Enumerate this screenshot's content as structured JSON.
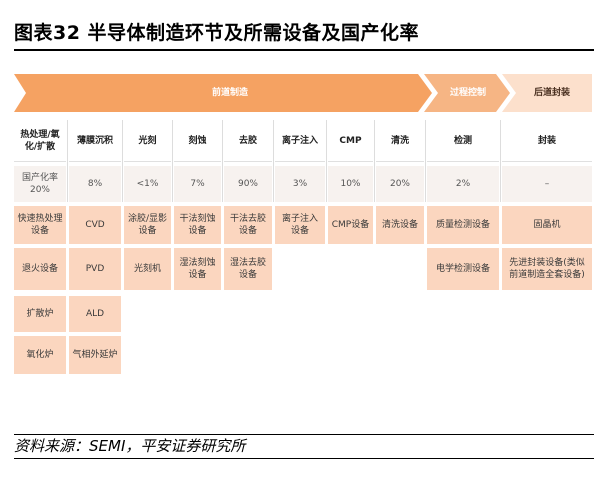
{
  "figure": {
    "title": "图表32    半导体制造环节及所需设备及国产化率",
    "source": "资料来源：SEMI，平安证券研究所"
  },
  "colors": {
    "stage_front": "#f5a262",
    "stage_mid": "#f6b584",
    "stage_back": "#fce0cc",
    "equipment_cell": "#fbd6bf",
    "rate_cell": "#f7f2ef"
  },
  "stages": {
    "front": "前道制造",
    "process_control": "过程控制",
    "packaging": "后道封装"
  },
  "table": {
    "headers": [
      "热处理/氧化/扩散",
      "薄膜沉积",
      "光刻",
      "刻蚀",
      "去胶",
      "离子注入",
      "CMP",
      "清洗",
      "检测",
      "封装"
    ],
    "rates": [
      "国产化率\n20%",
      "8%",
      "<1%",
      "7%",
      "90%",
      "3%",
      "10%",
      "20%",
      "2%",
      "–"
    ],
    "equipment": [
      [
        "快速热处理设备",
        "CVD",
        "涂胶/显影设备",
        "干法刻蚀设备",
        "干法去胶设备",
        "离子注入设备",
        "CMP设备",
        "清洗设备",
        "质量检测设备",
        "固晶机"
      ],
      [
        "退火设备",
        "PVD",
        "光刻机",
        "湿法刻蚀设备",
        "湿法去胶设备",
        "",
        "",
        "",
        "电学检测设备",
        "先进封装设备(类似前道制造全套设备)"
      ],
      [
        "扩散炉",
        "ALD",
        "",
        "",
        "",
        "",
        "",
        "",
        "",
        ""
      ],
      [
        "氧化炉",
        "气相外延炉",
        "",
        "",
        "",
        "",
        "",
        "",
        "",
        ""
      ]
    ]
  }
}
